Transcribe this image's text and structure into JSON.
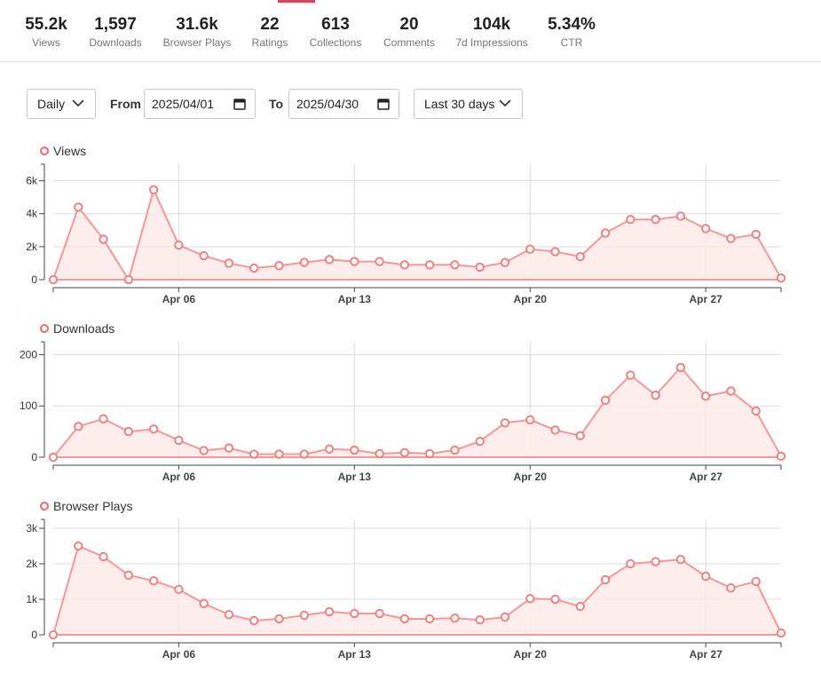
{
  "stats": [
    {
      "value": "55.2k",
      "label": "Views"
    },
    {
      "value": "1,597",
      "label": "Downloads"
    },
    {
      "value": "31.6k",
      "label": "Browser Plays"
    },
    {
      "value": "22",
      "label": "Ratings"
    },
    {
      "value": "613",
      "label": "Collections"
    },
    {
      "value": "20",
      "label": "Comments"
    },
    {
      "value": "104k",
      "label": "7d Impressions"
    },
    {
      "value": "5.34%",
      "label": "CTR"
    }
  ],
  "controls": {
    "interval": "Daily",
    "from_label": "From",
    "from_date": "2025/04/01",
    "to_label": "To",
    "to_date": "2025/04/30",
    "range": "Last 30 days"
  },
  "colors": {
    "line": "#f49797",
    "fill": "#fde8e8",
    "grid": "#dcdcdc",
    "axis": "#444444"
  },
  "chart_data": [
    {
      "type": "area",
      "title": "Views",
      "x": [
        "Apr 01",
        "Apr 02",
        "Apr 03",
        "Apr 04",
        "Apr 05",
        "Apr 06",
        "Apr 07",
        "Apr 08",
        "Apr 09",
        "Apr 10",
        "Apr 11",
        "Apr 12",
        "Apr 13",
        "Apr 14",
        "Apr 15",
        "Apr 16",
        "Apr 17",
        "Apr 18",
        "Apr 19",
        "Apr 20",
        "Apr 21",
        "Apr 22",
        "Apr 23",
        "Apr 24",
        "Apr 25",
        "Apr 26",
        "Apr 27",
        "Apr 28",
        "Apr 29",
        "Apr 30"
      ],
      "xticks": [
        "Apr 06",
        "Apr 13",
        "Apr 20",
        "Apr 27"
      ],
      "values": [
        0,
        4400,
        2450,
        0,
        5450,
        2100,
        1450,
        1000,
        700,
        850,
        1050,
        1220,
        1100,
        1100,
        900,
        900,
        900,
        760,
        1040,
        1850,
        1700,
        1400,
        2830,
        3650,
        3650,
        3850,
        3100,
        2500,
        2750,
        100
      ],
      "yticks": [
        0,
        2000,
        4000,
        6000
      ],
      "ytick_labels": [
        "0",
        "2k",
        "4k",
        "6k"
      ],
      "ylim": [
        0,
        7000
      ]
    },
    {
      "type": "area",
      "title": "Downloads",
      "x": [
        "Apr 01",
        "Apr 02",
        "Apr 03",
        "Apr 04",
        "Apr 05",
        "Apr 06",
        "Apr 07",
        "Apr 08",
        "Apr 09",
        "Apr 10",
        "Apr 11",
        "Apr 12",
        "Apr 13",
        "Apr 14",
        "Apr 15",
        "Apr 16",
        "Apr 17",
        "Apr 18",
        "Apr 19",
        "Apr 20",
        "Apr 21",
        "Apr 22",
        "Apr 23",
        "Apr 24",
        "Apr 25",
        "Apr 26",
        "Apr 27",
        "Apr 28",
        "Apr 29",
        "Apr 30"
      ],
      "xticks": [
        "Apr 06",
        "Apr 13",
        "Apr 20",
        "Apr 27"
      ],
      "values": [
        0,
        60,
        75,
        50,
        55,
        33,
        13,
        18,
        6,
        6,
        6,
        16,
        14,
        7,
        9,
        7,
        14,
        31,
        67,
        73,
        53,
        42,
        111,
        160,
        121,
        175,
        119,
        129,
        90,
        2
      ],
      "yticks": [
        0,
        100,
        200
      ],
      "ytick_labels": [
        "0",
        "100",
        "200"
      ],
      "ylim": [
        0,
        225
      ]
    },
    {
      "type": "area",
      "title": "Browser Plays",
      "x": [
        "Apr 01",
        "Apr 02",
        "Apr 03",
        "Apr 04",
        "Apr 05",
        "Apr 06",
        "Apr 07",
        "Apr 08",
        "Apr 09",
        "Apr 10",
        "Apr 11",
        "Apr 12",
        "Apr 13",
        "Apr 14",
        "Apr 15",
        "Apr 16",
        "Apr 17",
        "Apr 18",
        "Apr 19",
        "Apr 20",
        "Apr 21",
        "Apr 22",
        "Apr 23",
        "Apr 24",
        "Apr 25",
        "Apr 26",
        "Apr 27",
        "Apr 28",
        "Apr 29",
        "Apr 30"
      ],
      "xticks": [
        "Apr 06",
        "Apr 13",
        "Apr 20",
        "Apr 27"
      ],
      "values": [
        0,
        2500,
        2200,
        1680,
        1520,
        1280,
        880,
        570,
        400,
        450,
        550,
        650,
        600,
        600,
        450,
        450,
        470,
        420,
        500,
        1020,
        1000,
        800,
        1550,
        2000,
        2060,
        2120,
        1650,
        1320,
        1500,
        50
      ],
      "yticks": [
        0,
        1000,
        2000,
        3000
      ],
      "ytick_labels": [
        "0",
        "1k",
        "2k",
        "3k"
      ],
      "ylim": [
        0,
        3250
      ]
    }
  ]
}
